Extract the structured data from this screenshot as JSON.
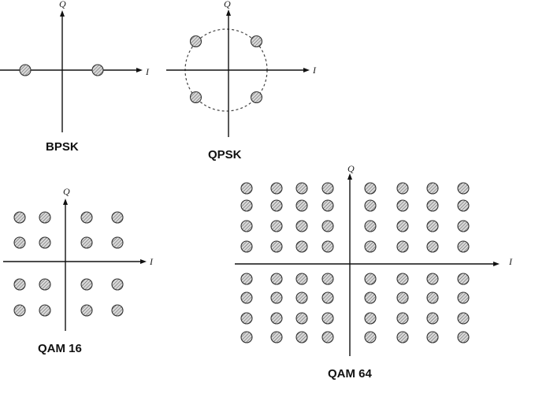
{
  "colors": {
    "axis": "#111111",
    "symbol_stroke": "#333333",
    "symbol_hatch": "#555555",
    "symbol_fill": "#d8d8d8"
  },
  "icons": {
    "symbol": "hatched-circle-marker"
  },
  "axis_labels": {
    "in_phase": "I",
    "quadrature": "Q"
  },
  "diagrams": [
    {
      "id": "bpsk",
      "caption": "BPSK",
      "symbols": [
        [
          -1,
          0
        ],
        [
          1,
          0
        ]
      ],
      "reference_circle": false
    },
    {
      "id": "qpsk",
      "caption": "QPSK",
      "symbols": [
        [
          -1,
          1
        ],
        [
          1,
          1
        ],
        [
          -1,
          -1
        ],
        [
          1,
          -1
        ]
      ],
      "reference_circle": true
    },
    {
      "id": "qam16",
      "caption": "QAM 16",
      "levels": [
        -3,
        -1,
        1,
        3
      ]
    },
    {
      "id": "qam64",
      "caption": "QAM 64",
      "levels": [
        -7,
        -5,
        -3,
        -1,
        1,
        3,
        5,
        7
      ]
    }
  ]
}
